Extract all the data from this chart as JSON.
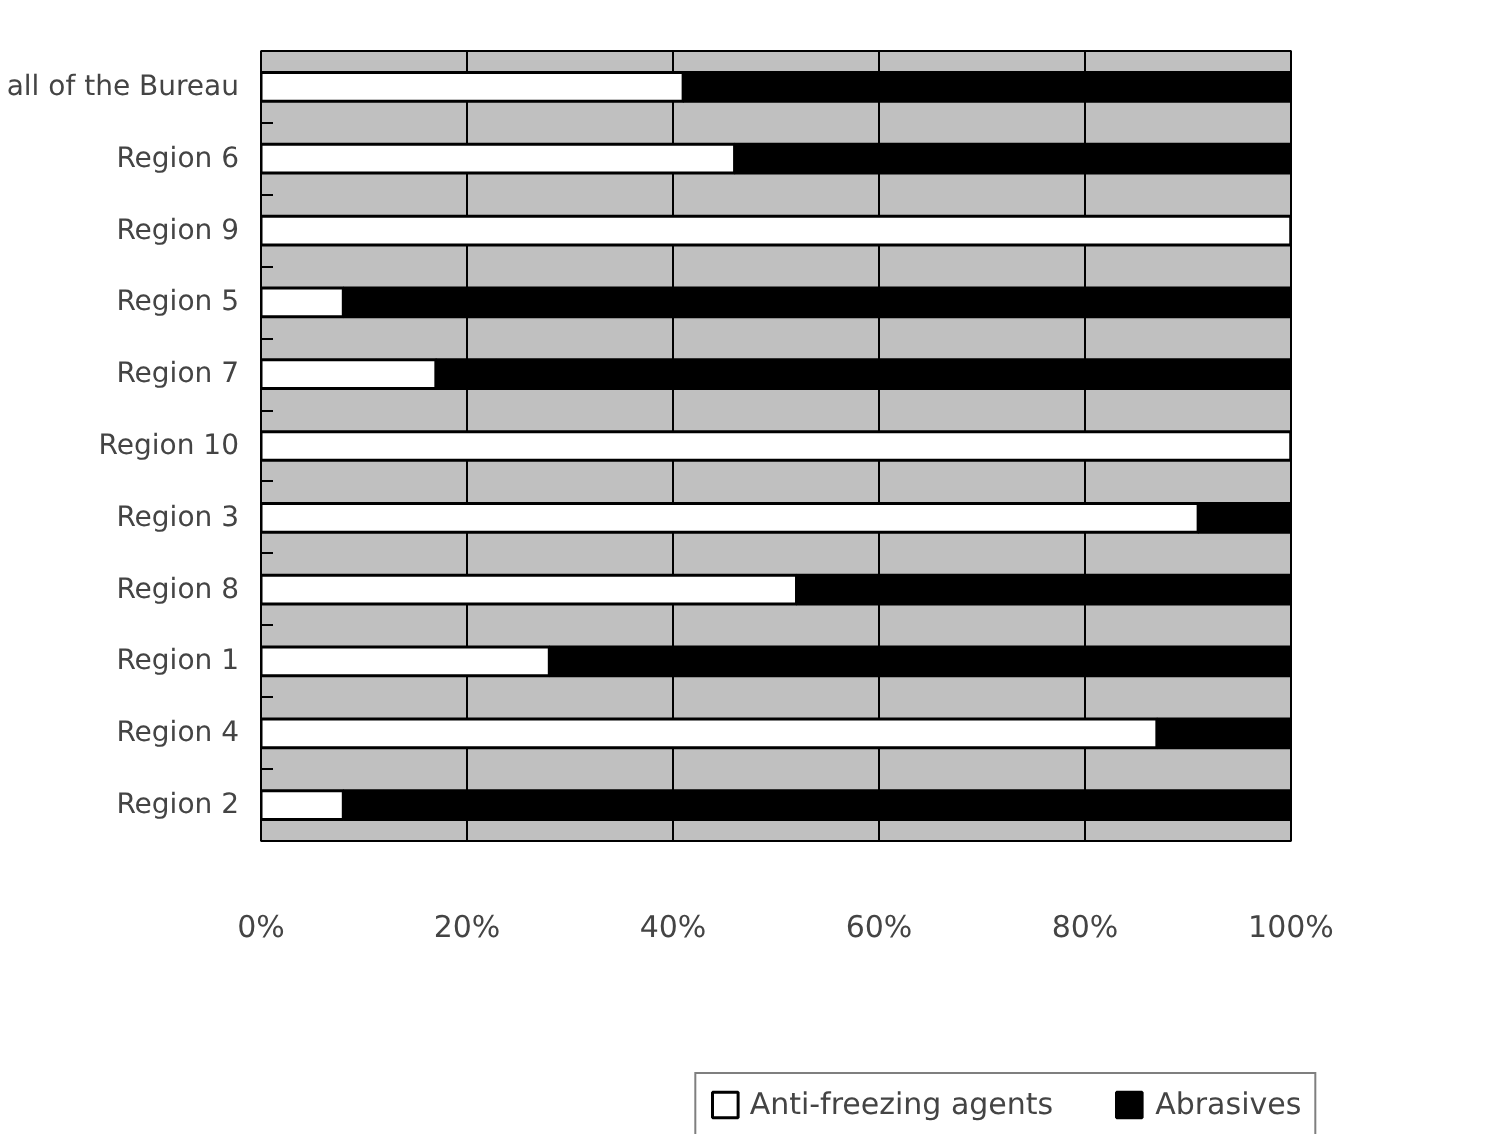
{
  "chart_data": {
    "type": "bar",
    "orientation": "horizontal",
    "stacked": true,
    "categories": [
      "all of the Bureau",
      "Region 6",
      "Region 9",
      "Region 5",
      "Region 7",
      "Region 10",
      "Region 3",
      "Region 8",
      "Region 1",
      "Region 4",
      "Region 2"
    ],
    "series": [
      {
        "name": "Anti-freezing agents",
        "color": "#ffffff",
        "values": [
          41,
          46,
          100,
          8,
          17,
          100,
          91,
          52,
          28,
          87,
          8
        ]
      },
      {
        "name": "Abrasives",
        "color": "#000000",
        "values": [
          59,
          54,
          0,
          92,
          83,
          0,
          9,
          48,
          72,
          13,
          92
        ]
      }
    ],
    "xlim": [
      0,
      100
    ],
    "xticks": [
      {
        "value": 0,
        "label": "0%"
      },
      {
        "value": 20,
        "label": "20%"
      },
      {
        "value": 40,
        "label": "40%"
      },
      {
        "value": 60,
        "label": "60%"
      },
      {
        "value": 80,
        "label": "80%"
      },
      {
        "value": 100,
        "label": "100%"
      }
    ],
    "grid": "x",
    "legend": "bottom"
  }
}
